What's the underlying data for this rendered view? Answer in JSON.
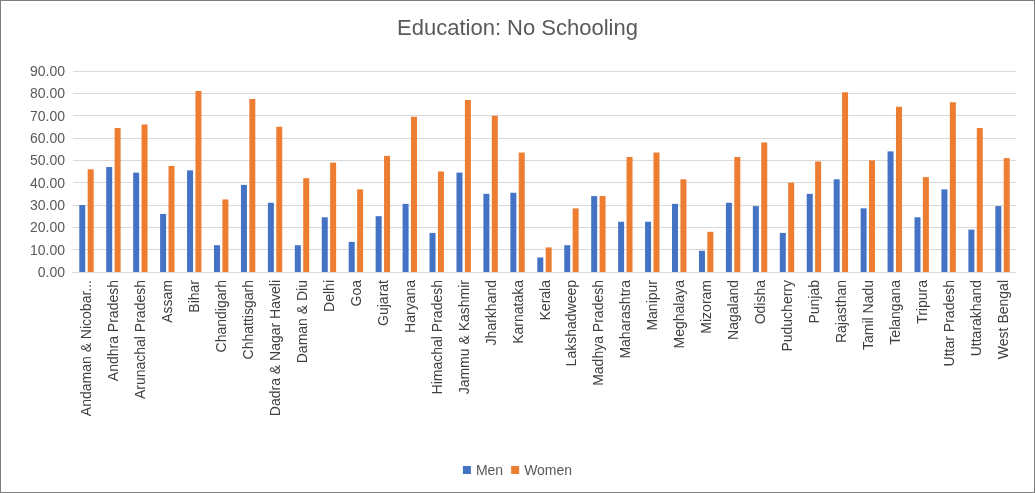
{
  "chart_data": {
    "type": "bar",
    "title": "Education: No Schooling",
    "categories": [
      "Andaman & Nicobar...",
      "Andhra Pradesh",
      "Arunachal Pradesh",
      "Assam",
      "Bihar",
      "Chandigarh",
      "Chhattisgarh",
      "Dadra & Nagar Haveli",
      "Daman & Diu",
      "Delhi",
      "Goa",
      "Gujarat",
      "Haryana",
      "Himachal Pradesh",
      "Jammu & Kashmir",
      "Jharkhand",
      "Karnataka",
      "Kerala",
      "Lakshadweep",
      "Madhya Pradesh",
      "Maharashtra",
      "Manipur",
      "Meghalaya",
      "Mizoram",
      "Nagaland",
      "Odisha",
      "Puducherry",
      "Punjab",
      "Rajasthan",
      "Tamil Nadu",
      "Telangana",
      "Tripura",
      "Uttar Pradesh",
      "Uttarakhand",
      "West Bengal"
    ],
    "series": [
      {
        "name": "Men",
        "color": "#4472c4",
        "values": [
          30,
          47,
          44.5,
          26,
          45.5,
          12,
          39,
          31,
          12,
          24.5,
          13.5,
          25,
          30.5,
          17.5,
          44.5,
          35,
          35.5,
          6.5,
          12,
          34,
          22.5,
          22.5,
          30.5,
          9.5,
          31,
          29.5,
          17.5,
          35,
          41.5,
          28.5,
          54,
          24.5,
          37,
          19,
          29.5
        ]
      },
      {
        "name": "Women",
        "color": "#ed7d31",
        "values": [
          46,
          64.5,
          66,
          47.5,
          81,
          32.5,
          77.5,
          65,
          42,
          49,
          37,
          52,
          69.5,
          45,
          77,
          70,
          53.5,
          11,
          28.5,
          34,
          51.5,
          53.5,
          41.5,
          18,
          51.5,
          58,
          40,
          49.5,
          80.5,
          50,
          74,
          42.5,
          76,
          64.5,
          51
        ]
      }
    ],
    "ylim": [
      0,
      90
    ],
    "yticks": [
      {
        "value": 0,
        "label": "0.00"
      },
      {
        "value": 10,
        "label": "10.00"
      },
      {
        "value": 20,
        "label": "20.00"
      },
      {
        "value": 30,
        "label": "30.00"
      },
      {
        "value": 40,
        "label": "40.00"
      },
      {
        "value": 50,
        "label": "50.00"
      },
      {
        "value": 60,
        "label": "60.00"
      },
      {
        "value": 70,
        "label": "70.00"
      },
      {
        "value": 80,
        "label": "80.00"
      },
      {
        "value": 90,
        "label": "90.00"
      }
    ],
    "grid": "y",
    "legend": "bottom"
  }
}
